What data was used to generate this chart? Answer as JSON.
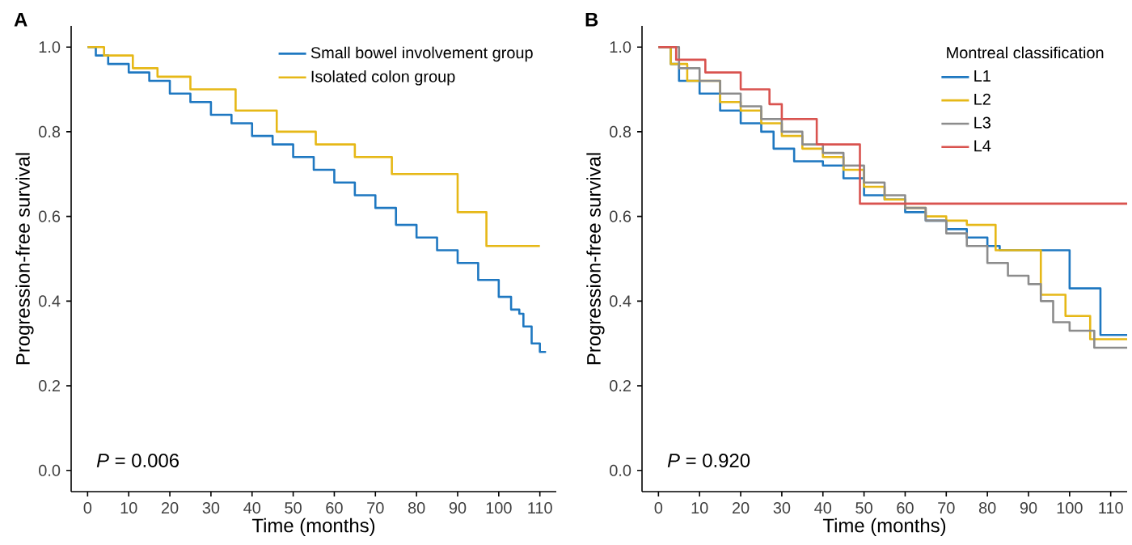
{
  "chart_data": [
    {
      "type": "step",
      "title": "A",
      "xlabel": "Time (months)",
      "ylabel": "Progression-free survival",
      "xlim": [
        -4,
        114
      ],
      "ylim": [
        -0.05,
        1.05
      ],
      "xticks": [
        0,
        10,
        20,
        30,
        40,
        50,
        60,
        70,
        80,
        90,
        100,
        110
      ],
      "yticks": [
        {
          "value": 0,
          "label": "0.0"
        },
        {
          "value": 0.2,
          "label": "0.2"
        },
        {
          "value": 0.4,
          "label": "0.4"
        },
        {
          "value": 0.6,
          "label": "0.6"
        },
        {
          "value": 0.8,
          "label": "0.8"
        },
        {
          "value": 1,
          "label": "1.0"
        }
      ],
      "legend": "top right",
      "grid": false,
      "annotations": [
        "*P* = 0.006"
      ],
      "series": [
        {
          "name": "Small bowel involvement group",
          "color": "#1f78c1",
          "x": [
            0,
            2,
            5,
            10,
            15,
            20,
            25,
            30,
            35,
            40,
            45,
            50,
            55,
            60,
            65,
            70,
            75,
            80,
            85,
            90,
            95,
            100,
            103,
            105,
            106,
            108,
            110,
            111.5
          ],
          "values": [
            1.0,
            0.98,
            0.96,
            0.94,
            0.92,
            0.89,
            0.87,
            0.84,
            0.82,
            0.79,
            0.77,
            0.74,
            0.71,
            0.68,
            0.65,
            0.62,
            0.58,
            0.55,
            0.52,
            0.49,
            0.45,
            0.41,
            0.38,
            0.37,
            0.34,
            0.3,
            0.28,
            0.28
          ]
        },
        {
          "name": "Isolated colon group",
          "color": "#e6b817",
          "x": [
            0,
            4,
            11,
            17,
            25,
            36,
            46,
            55.5,
            65,
            74,
            90,
            97,
            110
          ],
          "values": [
            1.0,
            0.98,
            0.95,
            0.93,
            0.9,
            0.85,
            0.8,
            0.77,
            0.74,
            0.7,
            0.61,
            0.53,
            0.53
          ]
        }
      ]
    },
    {
      "type": "step",
      "title": "B",
      "xlabel": "Time (months)",
      "ylabel": "Progression-free survival",
      "xlim": [
        -4,
        114
      ],
      "ylim": [
        -0.05,
        1.05
      ],
      "xticks": [
        0,
        10,
        20,
        30,
        40,
        50,
        60,
        70,
        80,
        90,
        100,
        110
      ],
      "yticks": [
        {
          "value": 0,
          "label": "0.0"
        },
        {
          "value": 0.2,
          "label": "0.2"
        },
        {
          "value": 0.4,
          "label": "0.4"
        },
        {
          "value": 0.6,
          "label": "0.6"
        },
        {
          "value": 0.8,
          "label": "0.8"
        },
        {
          "value": 1,
          "label": "1.0"
        }
      ],
      "legend": "top right",
      "legend_title": "Montreal classification",
      "grid": false,
      "annotations": [
        "*P* = 0.920"
      ],
      "series": [
        {
          "name": "L1",
          "color": "#1f78c1",
          "x": [
            0,
            3,
            5,
            10,
            15,
            20,
            25,
            28,
            33,
            40,
            45,
            50,
            55,
            60,
            65,
            70,
            75,
            80,
            83,
            100,
            107.5,
            114
          ],
          "values": [
            1.0,
            0.96,
            0.92,
            0.89,
            0.85,
            0.82,
            0.8,
            0.76,
            0.73,
            0.72,
            0.69,
            0.65,
            0.64,
            0.61,
            0.59,
            0.57,
            0.55,
            0.53,
            0.52,
            0.43,
            0.32,
            0.32
          ]
        },
        {
          "name": "L2",
          "color": "#e6b817",
          "x": [
            0,
            3,
            7,
            15,
            20,
            25,
            30,
            35,
            40,
            45,
            50,
            55,
            60,
            65,
            70,
            75,
            82,
            93,
            99,
            105,
            114
          ],
          "values": [
            1.0,
            0.96,
            0.92,
            0.87,
            0.85,
            0.82,
            0.79,
            0.76,
            0.74,
            0.71,
            0.67,
            0.64,
            0.62,
            0.6,
            0.59,
            0.58,
            0.52,
            0.415,
            0.365,
            0.31,
            0.31
          ]
        },
        {
          "name": "L3",
          "color": "#8c8c8c",
          "x": [
            0,
            5,
            10,
            15,
            20,
            25,
            30,
            35,
            40,
            45,
            50,
            55,
            60,
            65,
            70,
            75,
            80,
            85,
            90,
            93,
            96,
            100,
            106,
            114
          ],
          "values": [
            1.0,
            0.95,
            0.92,
            0.89,
            0.86,
            0.83,
            0.8,
            0.77,
            0.75,
            0.72,
            0.68,
            0.65,
            0.62,
            0.59,
            0.56,
            0.53,
            0.49,
            0.46,
            0.44,
            0.4,
            0.35,
            0.33,
            0.29,
            0.29
          ]
        },
        {
          "name": "L4",
          "color": "#d9534f",
          "x": [
            0,
            4.3,
            11.4,
            20,
            27,
            30,
            38.5,
            49,
            114
          ],
          "values": [
            1.0,
            0.97,
            0.94,
            0.9,
            0.865,
            0.83,
            0.77,
            0.63,
            0.63
          ]
        }
      ]
    }
  ]
}
